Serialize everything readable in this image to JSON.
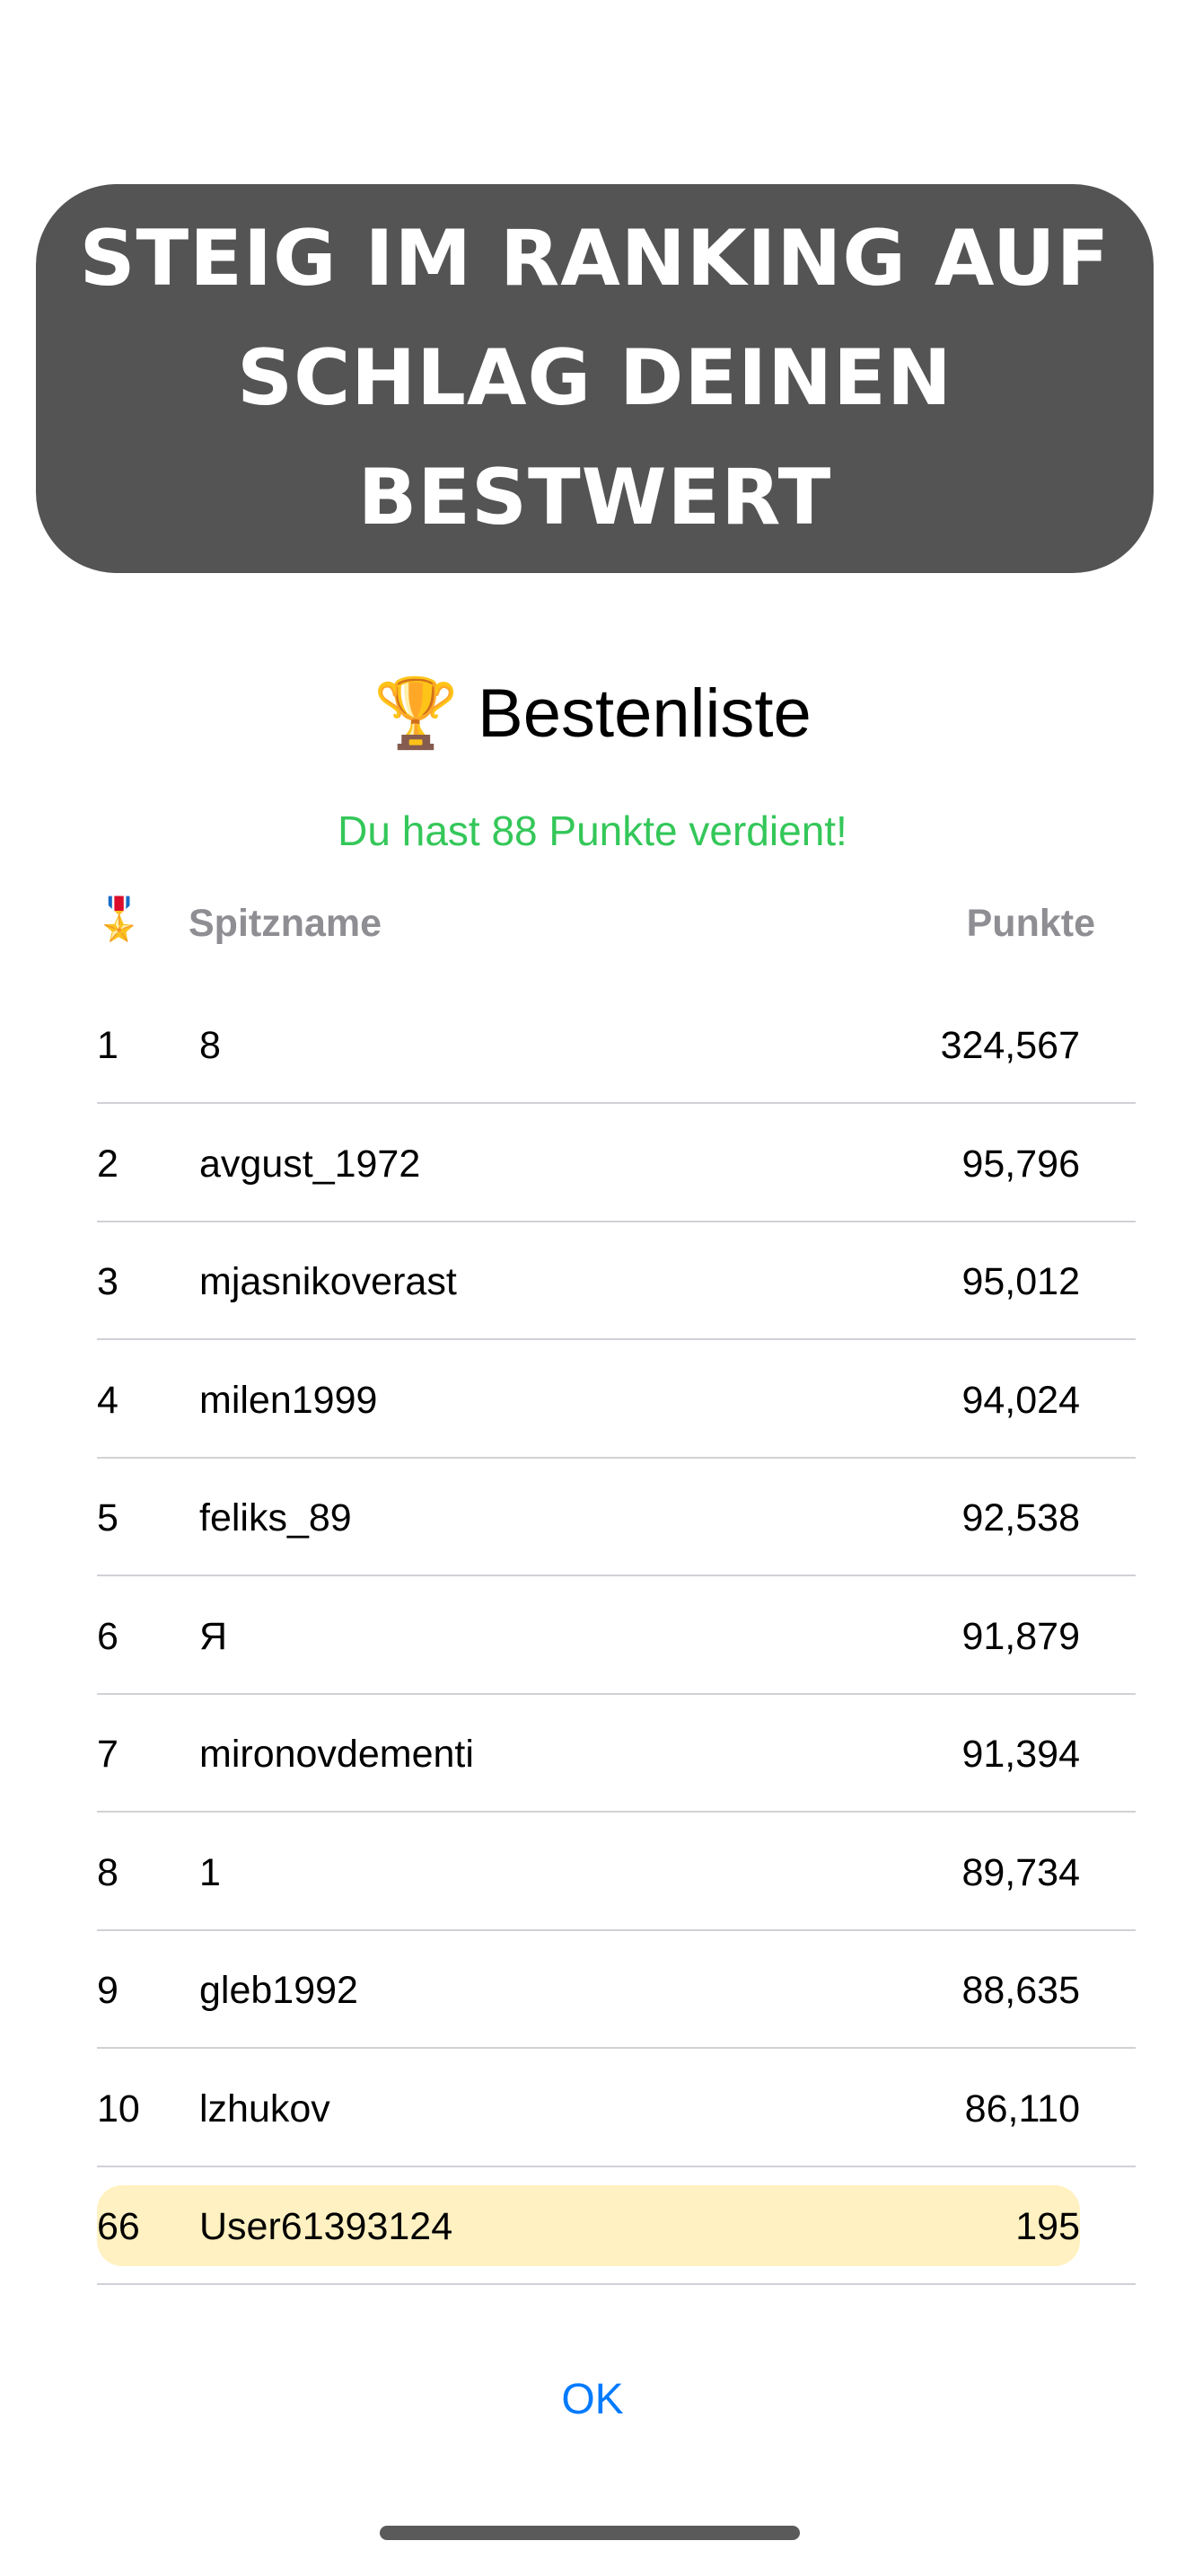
{
  "banner": {
    "lines": [
      "STEIG IM RANKING AUF",
      "SCHLAG DEINEN",
      "BESTWERT"
    ],
    "color": "#545454"
  },
  "leaderboard": {
    "title_icon": "trophy-icon",
    "title_emoji": "🏆",
    "title": "Bestenliste",
    "subtitle": "Du hast 88 Punkte verdient!",
    "subtitle_color": "#34c759",
    "header": {
      "medal_emoji": "🎖️",
      "name": "Spitzname",
      "points": "Punkte"
    },
    "rows": [
      {
        "rank": "1",
        "name": "8",
        "points": "324,567"
      },
      {
        "rank": "2",
        "name": "avgust_1972",
        "points": "95,796"
      },
      {
        "rank": "3",
        "name": "mjasnikoverast",
        "points": "95,012"
      },
      {
        "rank": "4",
        "name": "milen1999",
        "points": "94,024"
      },
      {
        "rank": "5",
        "name": "feliks_89",
        "points": "92,538"
      },
      {
        "rank": "6",
        "name": "Я",
        "points": "91,879"
      },
      {
        "rank": "7",
        "name": "mironovdementi",
        "points": "91,394"
      },
      {
        "rank": "8",
        "name": "1",
        "points": "89,734"
      },
      {
        "rank": "9",
        "name": "gleb1992",
        "points": "88,635"
      },
      {
        "rank": "10",
        "name": "lzhukov",
        "points": "86,110"
      }
    ],
    "current_user": {
      "rank": "66",
      "name": "User61393124",
      "points": "195",
      "highlight_color": "#fff1c1"
    }
  },
  "ok_button": {
    "label": "OK",
    "color": "#007aff"
  }
}
